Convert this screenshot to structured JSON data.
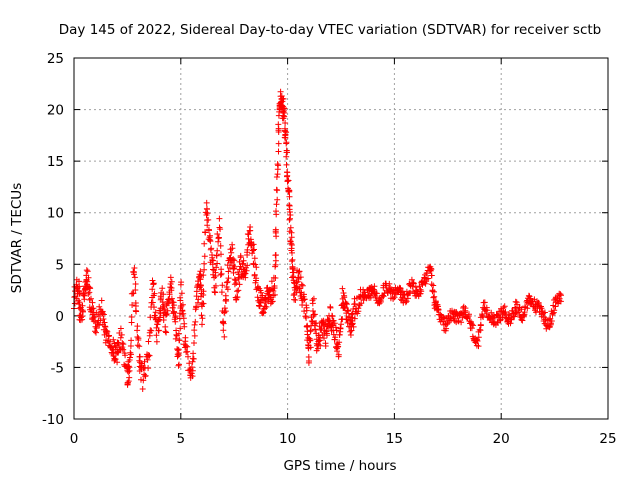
{
  "chart_data": {
    "type": "scatter",
    "title": "Day 145 of 2022, Sidereal Day-to-day VTEC variation (SDTVAR) for receiver sctb",
    "xlabel": "GPS time / hours",
    "ylabel": "SDTVAR / TECUs",
    "xlim": [
      0,
      25
    ],
    "ylim": [
      -10,
      25
    ],
    "xticks": [
      0,
      5,
      10,
      15,
      20,
      25
    ],
    "yticks": [
      -10,
      -5,
      0,
      5,
      10,
      15,
      20,
      25
    ],
    "xtick_labels": [
      "0",
      "5",
      "10",
      "15",
      "20",
      "25"
    ],
    "ytick_labels": [
      "-10",
      "-5",
      "0",
      "5",
      "10",
      "15",
      "20",
      "25"
    ],
    "grid": true,
    "marker": "+",
    "color": "#ff0000",
    "series": [
      {
        "name": "sctb",
        "anchors": [
          [
            0.0,
            1.5
          ],
          [
            0.2,
            3.0
          ],
          [
            0.3,
            0.0
          ],
          [
            0.5,
            2.0
          ],
          [
            0.6,
            4.0
          ],
          [
            0.8,
            1.0
          ],
          [
            1.0,
            -1.0
          ],
          [
            1.3,
            0.5
          ],
          [
            1.5,
            -2.0
          ],
          [
            1.8,
            -3.0
          ],
          [
            2.0,
            -4.0
          ],
          [
            2.2,
            -2.0
          ],
          [
            2.5,
            -6.0
          ],
          [
            2.6,
            -5.0
          ],
          [
            2.8,
            5.0
          ],
          [
            3.0,
            -3.0
          ],
          [
            3.2,
            -6.0
          ],
          [
            3.5,
            -4.0
          ],
          [
            3.7,
            3.0
          ],
          [
            3.9,
            -2.0
          ],
          [
            4.1,
            2.0
          ],
          [
            4.3,
            -1.0
          ],
          [
            4.5,
            3.0
          ],
          [
            4.7,
            0.5
          ],
          [
            4.9,
            -5.0
          ],
          [
            5.0,
            3.0
          ],
          [
            5.2,
            -3.0
          ],
          [
            5.5,
            -6.5
          ],
          [
            5.7,
            1.0
          ],
          [
            5.9,
            4.0
          ],
          [
            6.0,
            0.0
          ],
          [
            6.2,
            10.5
          ],
          [
            6.4,
            6.0
          ],
          [
            6.6,
            3.0
          ],
          [
            6.8,
            9.0
          ],
          [
            7.0,
            -2.0
          ],
          [
            7.2,
            4.0
          ],
          [
            7.4,
            6.0
          ],
          [
            7.6,
            2.0
          ],
          [
            7.8,
            5.0
          ],
          [
            8.0,
            4.0
          ],
          [
            8.2,
            8.0
          ],
          [
            8.4,
            6.0
          ],
          [
            8.6,
            2.0
          ],
          [
            8.8,
            1.0
          ],
          [
            9.0,
            1.5
          ],
          [
            9.2,
            2.0
          ],
          [
            9.4,
            3.0
          ],
          [
            9.5,
            12.0
          ],
          [
            9.6,
            19.0
          ],
          [
            9.7,
            21.5
          ],
          [
            9.8,
            20.0
          ],
          [
            9.9,
            18.0
          ],
          [
            10.0,
            14.0
          ],
          [
            10.1,
            10.0
          ],
          [
            10.2,
            6.0
          ],
          [
            10.3,
            2.0
          ],
          [
            10.5,
            4.0
          ],
          [
            10.7,
            2.0
          ],
          [
            10.9,
            0.0
          ],
          [
            11.0,
            -4.0
          ],
          [
            11.2,
            1.0
          ],
          [
            11.4,
            -3.0
          ],
          [
            11.6,
            -1.0
          ],
          [
            11.8,
            -2.0
          ],
          [
            12.0,
            0.0
          ],
          [
            12.2,
            -1.5
          ],
          [
            12.4,
            -3.0
          ],
          [
            12.6,
            2.0
          ],
          [
            12.8,
            0.0
          ],
          [
            13.0,
            -1.0
          ],
          [
            13.2,
            1.0
          ],
          [
            13.5,
            2.0
          ],
          [
            13.8,
            2.0
          ],
          [
            14.0,
            2.5
          ],
          [
            14.3,
            1.5
          ],
          [
            14.6,
            3.0
          ],
          [
            14.9,
            2.0
          ],
          [
            15.2,
            2.5
          ],
          [
            15.5,
            1.5
          ],
          [
            15.8,
            3.0
          ],
          [
            16.1,
            2.0
          ],
          [
            16.4,
            3.5
          ],
          [
            16.7,
            4.5
          ],
          [
            16.9,
            1.0
          ],
          [
            17.1,
            0.0
          ],
          [
            17.4,
            -1.0
          ],
          [
            17.7,
            0.5
          ],
          [
            18.0,
            -0.5
          ],
          [
            18.3,
            0.5
          ],
          [
            18.6,
            -1.0
          ],
          [
            18.9,
            -3.0
          ],
          [
            19.2,
            1.0
          ],
          [
            19.5,
            0.0
          ],
          [
            19.8,
            -0.5
          ],
          [
            20.1,
            0.5
          ],
          [
            20.4,
            -0.5
          ],
          [
            20.7,
            1.0
          ],
          [
            21.0,
            0.0
          ],
          [
            21.3,
            1.5
          ],
          [
            21.6,
            1.0
          ],
          [
            21.9,
            0.5
          ],
          [
            22.2,
            -1.0
          ],
          [
            22.5,
            1.0
          ],
          [
            22.8,
            2.0
          ]
        ]
      }
    ]
  }
}
